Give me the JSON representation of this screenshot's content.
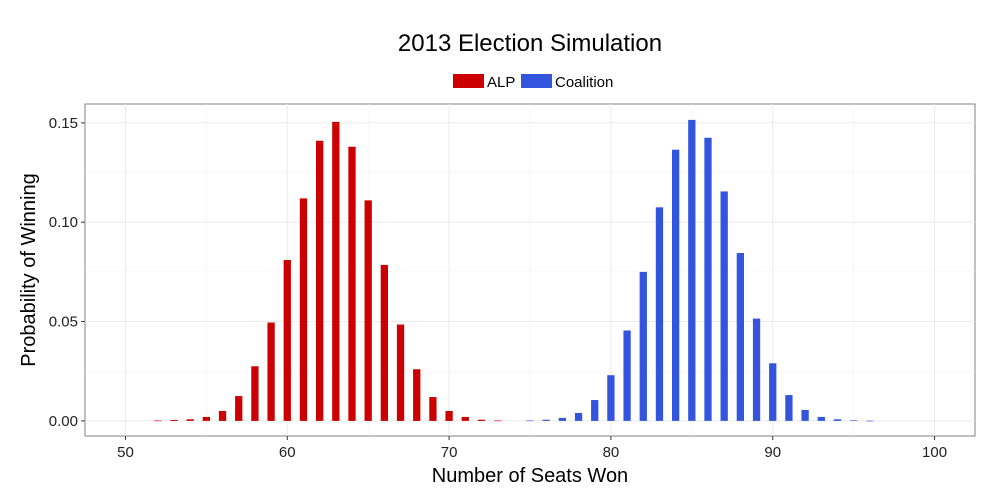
{
  "chart_data": {
    "type": "bar",
    "title": "2013 Election Simulation",
    "xlabel": "Number of Seats Won",
    "ylabel": "Probability of Winning",
    "xlim": [
      47.5,
      102.5
    ],
    "ylim": [
      -0.0076,
      0.1595
    ],
    "x_ticks": [
      50,
      60,
      70,
      80,
      90,
      100
    ],
    "x_tick_labels": [
      "50",
      "60",
      "70",
      "80",
      "90",
      "100"
    ],
    "y_ticks": [
      0,
      0.05,
      0.1,
      0.15
    ],
    "y_tick_labels": [
      "0.00",
      "0.05",
      "0.10",
      "0.15"
    ],
    "grid": true,
    "legend_position": "top",
    "series": [
      {
        "name": "ALP",
        "color": "#cc0000",
        "x": [
          52,
          53,
          54,
          55,
          56,
          57,
          58,
          59,
          60,
          61,
          62,
          63,
          64,
          65,
          66,
          67,
          68,
          69,
          70,
          71,
          72,
          73
        ],
        "values": [
          0.0002,
          0.0005,
          0.0008,
          0.002,
          0.005,
          0.0125,
          0.0275,
          0.0495,
          0.081,
          0.112,
          0.141,
          0.1505,
          0.138,
          0.111,
          0.0785,
          0.0485,
          0.026,
          0.012,
          0.005,
          0.002,
          0.0006,
          0.0002
        ]
      },
      {
        "name": "Coalition",
        "color": "#3355dd",
        "x": [
          75,
          76,
          77,
          78,
          79,
          80,
          81,
          82,
          83,
          84,
          85,
          86,
          87,
          88,
          89,
          90,
          91,
          92,
          93,
          94,
          95,
          96
        ],
        "values": [
          0.0002,
          0.0006,
          0.0015,
          0.004,
          0.0105,
          0.023,
          0.0455,
          0.075,
          0.1075,
          0.1365,
          0.1515,
          0.1425,
          0.1155,
          0.0845,
          0.0515,
          0.029,
          0.013,
          0.0055,
          0.002,
          0.0008,
          0.0003,
          0.0001
        ]
      }
    ]
  }
}
